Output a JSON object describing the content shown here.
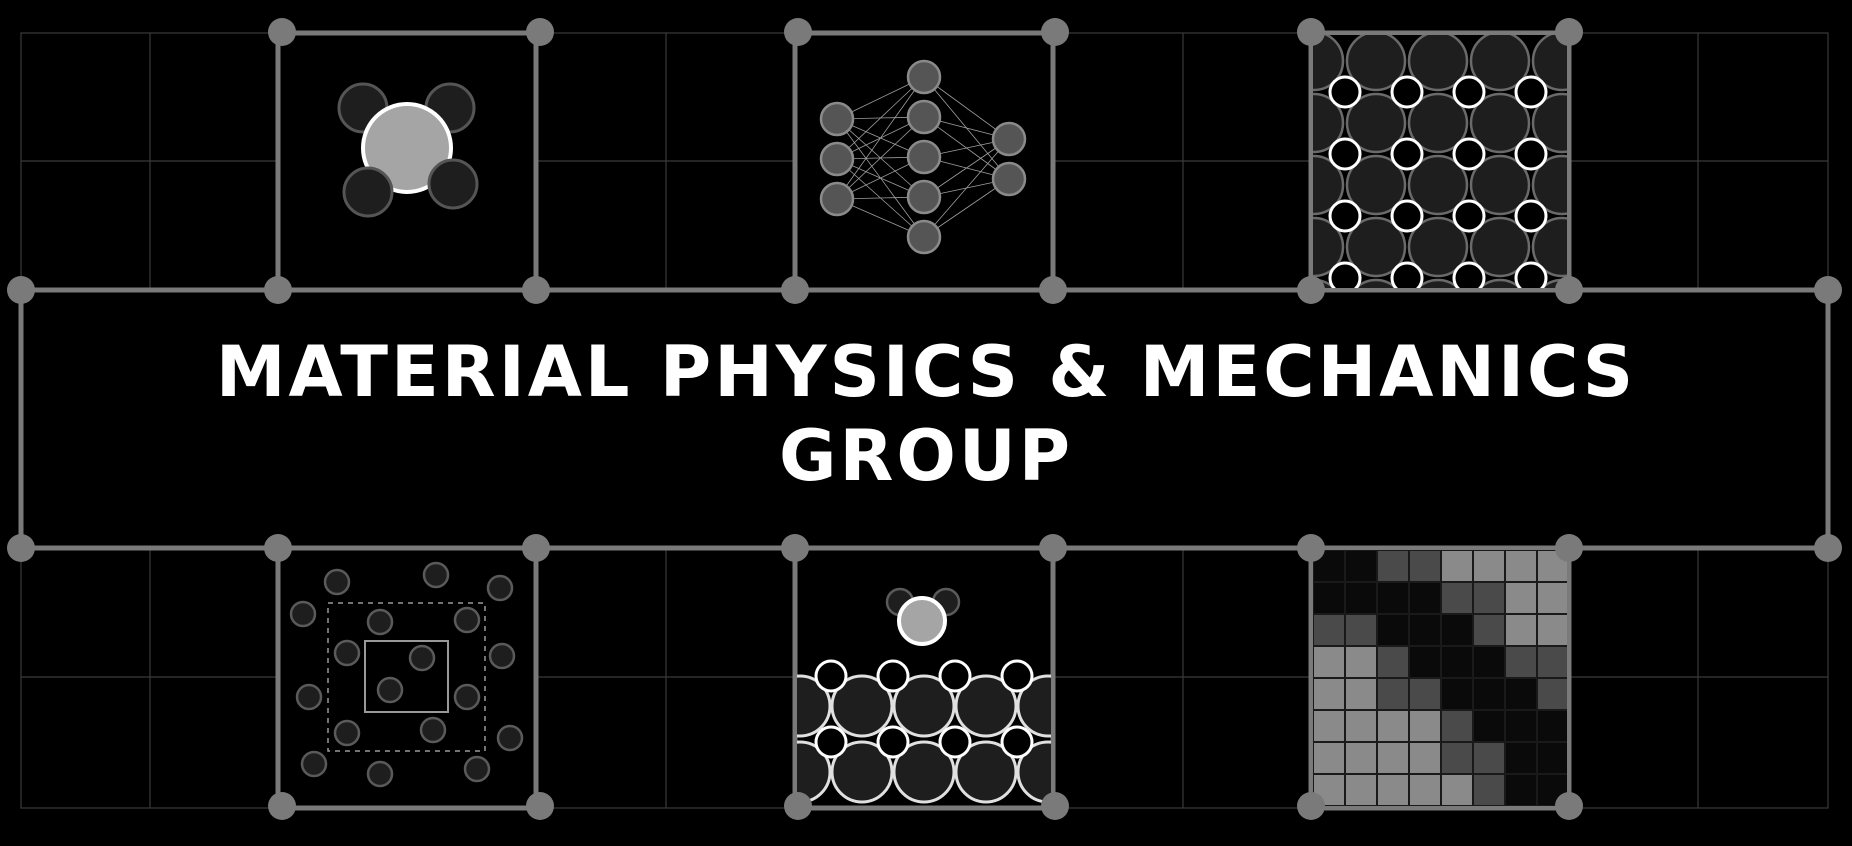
{
  "banner": {
    "title_line1": "MATERIAL PHYSICS & MECHANICS",
    "title_line2": "GROUP"
  },
  "colors": {
    "background": "#000000",
    "frame": "#7a7a7a",
    "grid": "#3a3a3a",
    "title": "#ffffff"
  },
  "panels": [
    {
      "name": "molecule-icon"
    },
    {
      "name": "neural-network-icon"
    },
    {
      "name": "crystal-lattice-icon"
    },
    {
      "name": "multiscale-particles-icon"
    },
    {
      "name": "surface-adsorption-icon"
    },
    {
      "name": "adaptive-mesh-icon"
    }
  ]
}
